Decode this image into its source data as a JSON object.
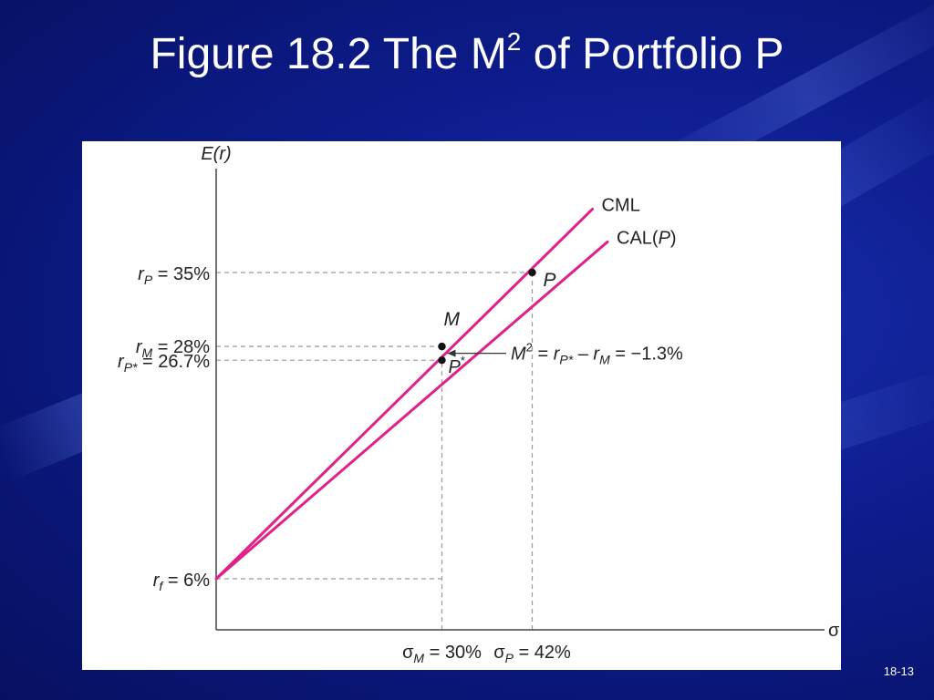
{
  "slide": {
    "title_prefix": "Figure 18.2 The M",
    "title_sup": "2",
    "title_suffix": " of Portfolio P",
    "slide_number": "18-13"
  },
  "colors": {
    "background": "#0d1c8c",
    "line": "#e0218a",
    "axis": "#444444",
    "guide": "#9a9a9a",
    "title_text": "#ffffff"
  },
  "chart_data": {
    "type": "line",
    "xlabel": "σ",
    "ylabel": "E(r)",
    "xlim": [
      0,
      50
    ],
    "ylim": [
      0,
      41
    ],
    "grid": false,
    "series": [
      {
        "name": "CML",
        "x": [
          0,
          50
        ],
        "y": [
          6,
          41
        ]
      },
      {
        "name": "CAL(P)",
        "x": [
          0,
          52
        ],
        "y": [
          6,
          37.9
        ]
      }
    ],
    "points": [
      {
        "name": "M",
        "x": 30,
        "y": 28
      },
      {
        "name": "P*",
        "x": 30,
        "y": 26.7
      },
      {
        "name": "P",
        "x": 42,
        "y": 35
      }
    ],
    "y_labels": [
      {
        "label": "r_P = 35%",
        "y": 35
      },
      {
        "label": "r_M = 28%",
        "y": 28
      },
      {
        "label": "r_P* = 26.7%",
        "y": 26.7
      },
      {
        "label": "r_f = 6%",
        "y": 6
      }
    ],
    "x_labels": [
      {
        "label": "σ_M = 30%",
        "x": 30
      },
      {
        "label": "σ_P = 42%",
        "x": 42
      }
    ],
    "annotation": "M² = r_P* − r_M = −1.3%"
  }
}
